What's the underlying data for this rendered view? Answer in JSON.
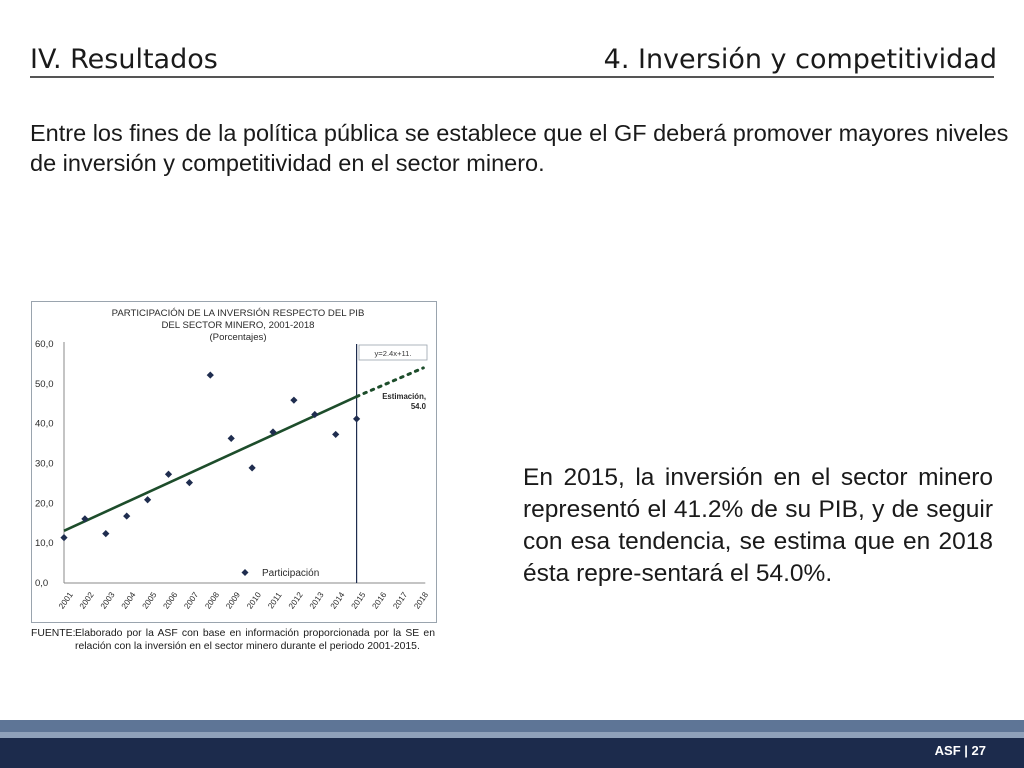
{
  "header": {
    "section_title": "IV. Resultados",
    "slide_title": "4. Inversión y competitividad"
  },
  "intro_text": "Entre los fines de la política pública se establece que el GF deberá promover mayores niveles de inversión y competitividad en el sector minero.",
  "side_text": "En 2015, la inversión en el sector minero representó el 41.2% de su PIB, y de seguir con esa tendencia, se estima que en 2018 ésta repre-sentará el 54.0%.",
  "source_label": "FUENTE:",
  "source_text": "Elaborado por la ASF con base en información proporcionada por la SE en relación con la inversión en el sector minero durante el periodo 2001-2015.",
  "footer": {
    "label": "ASF | 27"
  },
  "colors": {
    "trend": "#1d4d2b",
    "points": "#1f2d4f",
    "footer": "#1c2b4c"
  },
  "chart_data": {
    "type": "scatter",
    "title": "PARTICIPACIÓN DE LA INVERSIÓN RESPECTO DEL PIB DEL SECTOR MINERO, 2001-2018",
    "title_lines": [
      "PARTICIPACIÓN DE LA INVERSIÓN RESPECTO DEL PIB",
      "DEL SECTOR MINERO, 2001-2018"
    ],
    "subtitle": "(Porcentajes)",
    "categories": [
      "2001",
      "2002",
      "2003",
      "2004",
      "2005",
      "2006",
      "2007",
      "2008",
      "2009",
      "2010",
      "2011",
      "2012",
      "2013",
      "2014",
      "2015",
      "2016",
      "2017",
      "2018"
    ],
    "y_ticks": [
      "0,0",
      "10,0",
      "20,0",
      "30,0",
      "40,0",
      "50,0",
      "60,0"
    ],
    "ylim": [
      0,
      60
    ],
    "series": [
      {
        "name": "Participación",
        "values": [
          11.4,
          16.1,
          12.4,
          16.8,
          20.9,
          27.3,
          25.2,
          52.2,
          36.3,
          28.9,
          37.9,
          45.9,
          42.3,
          37.3,
          41.2
        ]
      }
    ],
    "trendline": {
      "equation": "y=2.4x+11.",
      "start": [
        2001,
        13.1
      ],
      "end": [
        2015,
        46.8
      ]
    },
    "projection": {
      "label_line1": "Estimación,",
      "label_line2": "54.0",
      "start": [
        2015,
        46.8
      ],
      "end": [
        2018,
        54.0
      ]
    },
    "legend_position": "bottom"
  }
}
